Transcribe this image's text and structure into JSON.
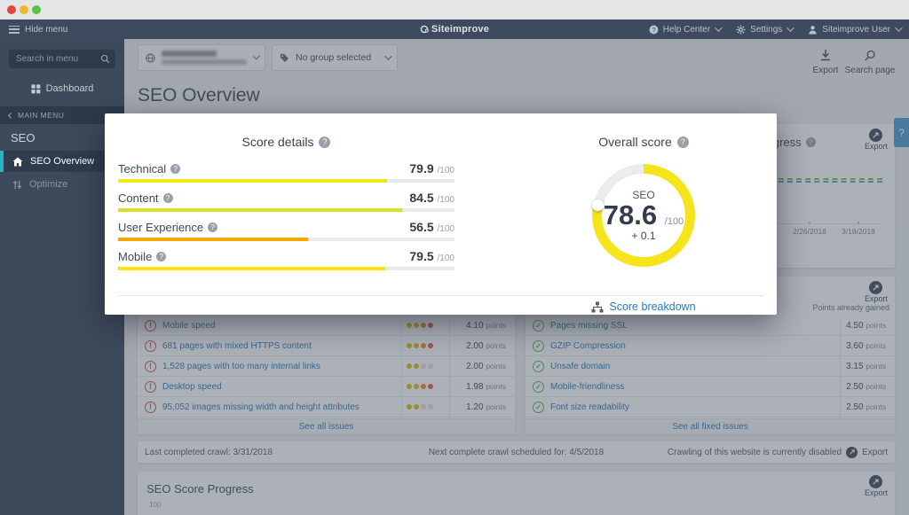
{
  "chrome": {
    "traffic_lights": [
      "#e2463e",
      "#f0b72c",
      "#58c446"
    ]
  },
  "topnav": {
    "hide_menu": "Hide menu",
    "brand": "Siteimprove",
    "help_center": "Help Center",
    "settings": "Settings",
    "user": "Siteimprove User"
  },
  "sidebar": {
    "search_placeholder": "Search in menu",
    "dashboard": "Dashboard",
    "main_menu": "MAIN MENU",
    "section": "SEO",
    "items": [
      {
        "label": "SEO Overview",
        "active": true
      },
      {
        "label": "Optimize",
        "active": false
      }
    ],
    "active_color": "#25b3c5"
  },
  "header": {
    "group_selector": "No group selected",
    "export_label": "Export",
    "search_page_label": "Search page",
    "page_title": "SEO Overview",
    "help_tab": "?"
  },
  "progress_card": {
    "title": "SEO Score Progress",
    "export_label": "Export",
    "x_labels": [
      "2/26/2018",
      "3/18/2018"
    ],
    "line_color_green": "#84c341",
    "line_color_blue": "#55a7dc"
  },
  "modal": {
    "score_details": {
      "title": "Score details",
      "max_suffix": "/100",
      "rows": [
        {
          "label": "Technical",
          "value": "79.9",
          "pct": 79.9,
          "color": "#f3e813"
        },
        {
          "label": "Content",
          "value": "84.5",
          "pct": 84.5,
          "color": "#d7e022"
        },
        {
          "label": "User Experience",
          "value": "56.5",
          "pct": 56.5,
          "color": "#f5a700"
        },
        {
          "label": "Mobile",
          "value": "79.5",
          "pct": 79.5,
          "color": "#fbe30b"
        }
      ]
    },
    "overall": {
      "title": "Overall score",
      "ring_label": "SEO",
      "score": "78.6",
      "max_suffix": "/100",
      "change": "+ 0.1",
      "pct": 78.6,
      "ring_color": "#f5e41c",
      "ring_rest_color": "#ececee",
      "link": "Score breakdown"
    }
  },
  "issues_card": {
    "points_suffix": "points",
    "dot_colors": [
      "#d6c11b",
      "#debb1e",
      "#e39420",
      "#da6140"
    ],
    "dot_inactive": "#e4e6e8",
    "rows": [
      {
        "label": "Mobile speed",
        "dots": 4,
        "points": "4.10"
      },
      {
        "label": "681 pages with mixed HTTPS content",
        "dots": 4,
        "points": "2.00"
      },
      {
        "label": "1,528 pages with too many internal links",
        "dots": 2,
        "points": "2.00"
      },
      {
        "label": "Desktop speed",
        "dots": 4,
        "points": "1.98"
      },
      {
        "label": "95,052 images missing width and height attributes",
        "dots": 2,
        "points": "1.20"
      }
    ],
    "see_all": "See all issues"
  },
  "fixed_card": {
    "header": "Points already gained",
    "export_label": "Export",
    "points_suffix": "points",
    "rows": [
      {
        "label": "Pages missing SSL",
        "points": "4.50"
      },
      {
        "label": "GZIP Compression",
        "points": "3.60"
      },
      {
        "label": "Unsafe domain",
        "points": "3.15"
      },
      {
        "label": "Mobile-friendliness",
        "points": "2.50"
      },
      {
        "label": "Font size readability",
        "points": "2.50"
      }
    ],
    "see_all": "See all fixed issues"
  },
  "crawl_bar": {
    "last": "Last completed crawl: 3/31/2018",
    "next": "Next complete crawl scheduled for: 4/5/2018",
    "status": "Crawling of this website is currently disabled",
    "export_label": "Export"
  },
  "bottom_card": {
    "title": "SEO Score Progress",
    "export_label": "Export",
    "axis_top": "100"
  }
}
